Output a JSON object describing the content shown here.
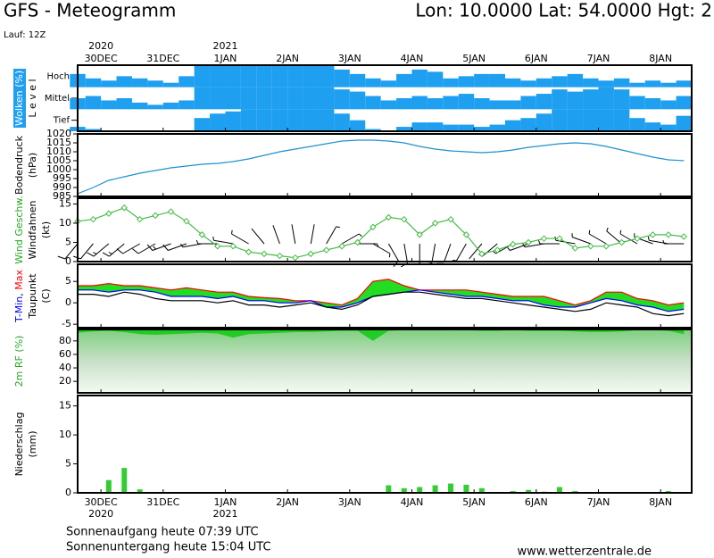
{
  "title": "GFS - Meteogramm",
  "location": "Lon: 10.0000 Lat: 54.0000 Hgt: 2",
  "run": "Lauf: 12Z",
  "sunrise": "Sonnenaufgang heute 07:39 UTC",
  "sunset": "Sonnenuntergang heute 15:04 UTC",
  "source": "www.wetterzentrale.de",
  "chart_data": {
    "type": "meteogram",
    "x": [
      0,
      6,
      12,
      18,
      24,
      30,
      36,
      42,
      48,
      54,
      60,
      66,
      72,
      78,
      84,
      90,
      96,
      102,
      108,
      114,
      120,
      126,
      132,
      138,
      144,
      150,
      156,
      162,
      168,
      174,
      180,
      186,
      192,
      198,
      204,
      210,
      216,
      222,
      228,
      234
    ],
    "xlim": [
      0,
      237
    ],
    "xticks": [
      {
        "value": 9,
        "label": "30DEC"
      },
      {
        "value": 33,
        "label": "31DEC"
      },
      {
        "value": 57,
        "label": "1JAN"
      },
      {
        "value": 81,
        "label": "2JAN"
      },
      {
        "value": 105,
        "label": "3JAN"
      },
      {
        "value": 129,
        "label": "4JAN"
      },
      {
        "value": 153,
        "label": "5JAN"
      },
      {
        "value": 177,
        "label": "6JAN"
      },
      {
        "value": 201,
        "label": "7JAN"
      },
      {
        "value": 225,
        "label": "8JAN"
      }
    ],
    "year_labels": [
      {
        "value": 9,
        "label": "2020"
      },
      {
        "value": 57,
        "label": "2021"
      }
    ],
    "panels": [
      {
        "type": "cloud",
        "color": "#1e9ff0",
        "ylabels": [
          [
            {
              "text": "Wolken (%)",
              "color": "#ffffff"
            }
          ],
          [
            {
              "text": "L e v e l",
              "color": "#000000"
            }
          ]
        ],
        "ylabel_background": "#1e9ff0",
        "series": [
          {
            "name": "Hoch",
            "values": [
              60,
              40,
              30,
              50,
              40,
              30,
              20,
              50,
              100,
              100,
              100,
              100,
              100,
              100,
              100,
              100,
              100,
              80,
              60,
              40,
              30,
              60,
              80,
              70,
              40,
              50,
              60,
              60,
              40,
              30,
              40,
              50,
              60,
              40,
              30,
              40,
              20,
              30,
              20,
              30
            ]
          },
          {
            "name": "Mittel",
            "values": [
              50,
              60,
              40,
              50,
              30,
              20,
              30,
              40,
              100,
              100,
              100,
              100,
              100,
              100,
              100,
              100,
              100,
              90,
              80,
              60,
              40,
              50,
              60,
              50,
              60,
              70,
              50,
              40,
              40,
              60,
              70,
              90,
              80,
              90,
              100,
              90,
              60,
              50,
              40,
              60
            ]
          },
          {
            "name": "Tief",
            "values": [
              20,
              10,
              0,
              0,
              0,
              0,
              0,
              0,
              60,
              80,
              90,
              100,
              100,
              100,
              100,
              100,
              100,
              80,
              50,
              10,
              0,
              20,
              40,
              40,
              30,
              30,
              20,
              30,
              50,
              60,
              80,
              100,
              100,
              100,
              100,
              100,
              60,
              40,
              30,
              70
            ]
          }
        ]
      },
      {
        "type": "line",
        "color": "#1e90d0",
        "ylabels": [
          [
            {
              "text": "Bodendruck",
              "color": "#000000"
            }
          ],
          [
            {
              "text": "(hPa)",
              "color": "#000000"
            }
          ]
        ],
        "ylim": [
          985,
          1020
        ],
        "yticks": [
          985,
          990,
          995,
          1000,
          1005,
          1010,
          1015,
          1020
        ],
        "values": [
          986.5,
          990,
          994,
          996,
          998,
          999.5,
          1001,
          1002,
          1003,
          1003.5,
          1004.5,
          1006,
          1008,
          1010,
          1011.5,
          1013,
          1014.5,
          1016,
          1016.5,
          1016.5,
          1016,
          1015,
          1013,
          1011.5,
          1010.5,
          1010,
          1009.5,
          1010,
          1011,
          1012.5,
          1013.5,
          1014.5,
          1015,
          1014.5,
          1013,
          1011,
          1009,
          1007,
          1005.5,
          1005
        ]
      },
      {
        "type": "wind",
        "ylabels": [
          [
            {
              "text": "Wind Geschw.",
              "color": "#22aa22"
            }
          ],
          [
            {
              "text": "Windfahnen",
              "color": "#000000"
            }
          ],
          [
            {
              "text": "(kt)",
              "color": "#000000"
            }
          ]
        ],
        "ylim": [
          0,
          16.5
        ],
        "yticks": [
          0,
          5,
          10,
          15
        ],
        "speed": {
          "color": "#44bb44",
          "values": [
            10.5,
            11,
            12.5,
            14,
            11,
            12,
            13,
            10.5,
            7,
            4,
            4,
            2.5,
            2,
            1.5,
            1,
            2,
            3,
            4,
            5,
            9,
            11.5,
            11,
            7,
            10,
            11,
            7,
            2,
            3,
            4.5,
            5,
            6,
            6,
            3.5,
            4,
            4,
            5,
            6,
            7,
            7,
            6.5
          ]
        },
        "direction": {
          "color": "#000000",
          "values": [
            220,
            220,
            230,
            230,
            240,
            240,
            250,
            250,
            260,
            270,
            280,
            300,
            320,
            340,
            350,
            10,
            30,
            60,
            90,
            120,
            150,
            170,
            180,
            190,
            200,
            210,
            220,
            230,
            240,
            250,
            260,
            270,
            280,
            290,
            300,
            310,
            300,
            290,
            280,
            270
          ]
        }
      },
      {
        "type": "temperature",
        "ylabels": [
          [
            {
              "text": "T-Min",
              "color": "#0000ff"
            },
            {
              "text": ", ",
              "color": "#000000"
            },
            {
              "text": "Max",
              "color": "#ff0000"
            }
          ],
          [
            {
              "text": "Taupunkt",
              "color": "#000000"
            }
          ],
          [
            {
              "text": "(C)",
              "color": "#000000"
            }
          ]
        ],
        "ylim": [
          -5.8,
          9
        ],
        "yticks": [
          -5,
          0,
          5
        ],
        "fill_color": "#22dd22",
        "tmax": {
          "color": "#ff0000",
          "values": [
            4,
            4,
            4.5,
            4,
            4,
            3.5,
            3,
            3.5,
            3,
            2.5,
            2.5,
            1.5,
            1.2,
            1,
            0.5,
            0.5,
            0,
            -0.5,
            1,
            5,
            5.5,
            4,
            3,
            3,
            3,
            3,
            2.5,
            2,
            1.5,
            1.5,
            1.5,
            0.5,
            -0.5,
            0.5,
            2.5,
            2.5,
            1,
            0.5,
            -0.5,
            0
          ]
        },
        "tmin": {
          "color": "#0000ff",
          "values": [
            3,
            3,
            2.5,
            3,
            3,
            2.5,
            1.5,
            1.5,
            1.5,
            1,
            1.5,
            0.5,
            0.5,
            0,
            0,
            0.5,
            -1,
            -1,
            0,
            1.5,
            2,
            2.5,
            3,
            2.5,
            2,
            1.5,
            1.5,
            1,
            0.5,
            0.5,
            -0.5,
            -1,
            -1,
            0,
            1,
            0.5,
            -0.5,
            -1,
            -2,
            -1.5
          ]
        },
        "dewpoint": {
          "color": "#000000",
          "values": [
            2,
            2,
            1.5,
            2.5,
            2,
            1,
            0.5,
            0.5,
            0.5,
            0,
            0.5,
            -0.5,
            -0.5,
            -1,
            -0.5,
            0,
            -1,
            -1.5,
            -0.5,
            1.5,
            2,
            2.5,
            2.5,
            2,
            1.5,
            1,
            1,
            0.5,
            0,
            -0.5,
            -1,
            -1.5,
            -2,
            -1.5,
            0,
            -0.5,
            -1,
            -2.5,
            -3,
            -2.5
          ]
        }
      },
      {
        "type": "area",
        "color": "#22cc22",
        "ylabels": [
          [
            {
              "text": "2m RF (%)",
              "color": "#22aa22"
            }
          ]
        ],
        "ylim": [
          3,
          97
        ],
        "yticks": [
          20,
          40,
          60,
          80
        ],
        "values": [
          92,
          94,
          95,
          93,
          90,
          89,
          90,
          91,
          92,
          91,
          85,
          90,
          91,
          92,
          93,
          93,
          94,
          95,
          95,
          80,
          95,
          96,
          96,
          96,
          96,
          96,
          95,
          95,
          96,
          95,
          95,
          95,
          94,
          93,
          93,
          94,
          96,
          96,
          95,
          90
        ]
      },
      {
        "type": "bar",
        "color": "#33cc33",
        "ylabels": [
          [
            {
              "text": "Niederschlag",
              "color": "#000000"
            }
          ],
          [
            {
              "text": "(mm)",
              "color": "#000000"
            }
          ]
        ],
        "ylim": [
          0,
          16.8
        ],
        "yticks": [
          0,
          5,
          10,
          15
        ],
        "values": [
          0,
          0,
          2.2,
          4.3,
          0.6,
          0,
          0,
          0,
          0,
          0,
          0,
          0,
          0,
          0,
          0,
          0,
          0,
          0,
          0,
          0,
          1.3,
          0.8,
          1.0,
          1.3,
          1.6,
          1.4,
          0.8,
          0.1,
          0.3,
          0.5,
          0.2,
          1.0,
          0.3,
          0.1,
          0,
          0,
          0.1,
          0,
          0.3,
          0
        ]
      }
    ]
  }
}
